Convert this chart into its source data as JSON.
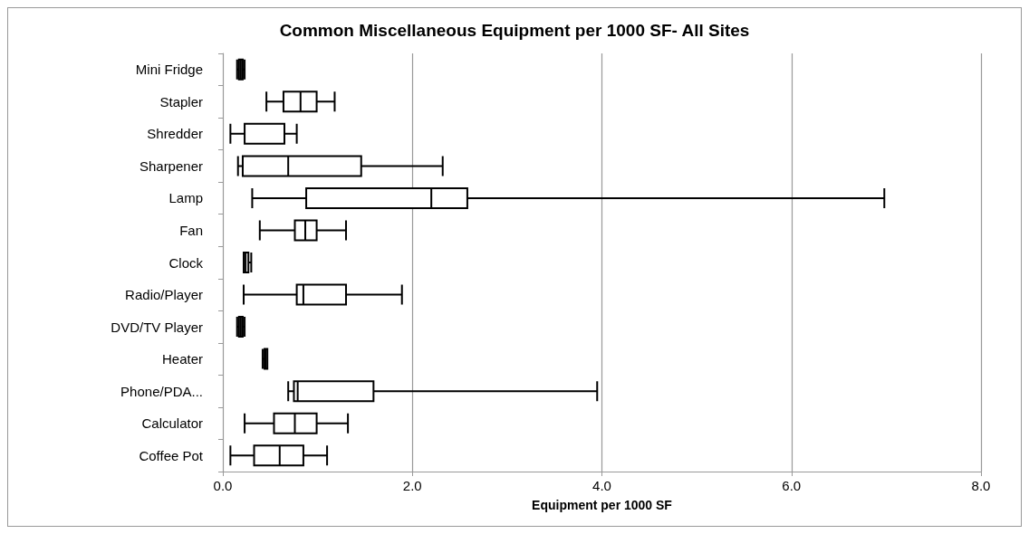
{
  "chart_data": {
    "type": "box",
    "title": "Common Miscellaneous Equipment per 1000 SF- All Sites",
    "xlabel": "Equipment per 1000 SF",
    "orientation": "horizontal",
    "categories": [
      "Mini Fridge",
      "Stapler",
      "Shredder",
      "Sharpener",
      "Lamp",
      "Fan",
      "Clock",
      "Radio/Player",
      "DVD/TV Player",
      "Heater",
      "Phone/PDA...",
      "Calculator",
      "Coffee Pot"
    ],
    "boxes": [
      {
        "low": 0.15,
        "q1": 0.17,
        "median": 0.19,
        "q3": 0.21,
        "high": 0.23
      },
      {
        "low": 0.46,
        "q1": 0.64,
        "median": 0.82,
        "q3": 0.99,
        "high": 1.18
      },
      {
        "low": 0.08,
        "q1": 0.23,
        "median": 0.23,
        "q3": 0.65,
        "high": 0.78
      },
      {
        "low": 0.16,
        "q1": 0.21,
        "median": 0.69,
        "q3": 1.46,
        "high": 2.32
      },
      {
        "low": 0.31,
        "q1": 0.88,
        "median": 2.2,
        "q3": 2.58,
        "high": 6.98
      },
      {
        "low": 0.39,
        "q1": 0.76,
        "median": 0.87,
        "q3": 0.99,
        "high": 1.3
      },
      {
        "low": 0.22,
        "q1": 0.22,
        "median": 0.24,
        "q3": 0.27,
        "high": 0.3
      },
      {
        "low": 0.22,
        "q1": 0.78,
        "median": 0.85,
        "q3": 1.3,
        "high": 1.89
      },
      {
        "low": 0.15,
        "q1": 0.17,
        "median": 0.19,
        "q3": 0.21,
        "high": 0.23
      },
      {
        "low": 0.42,
        "q1": 0.44,
        "median": 0.45,
        "q3": 0.47,
        "high": 0.47
      },
      {
        "low": 0.69,
        "q1": 0.75,
        "median": 0.79,
        "q3": 1.59,
        "high": 3.95
      },
      {
        "low": 0.23,
        "q1": 0.54,
        "median": 0.76,
        "q3": 0.99,
        "high": 1.32
      },
      {
        "low": 0.08,
        "q1": 0.33,
        "median": 0.6,
        "q3": 0.85,
        "high": 1.1
      }
    ],
    "color": "#000000",
    "xlim": [
      0,
      8
    ],
    "xticks": [
      {
        "value": 0,
        "label": "0.0"
      },
      {
        "value": 2,
        "label": "2.0"
      },
      {
        "value": 4,
        "label": "4.0"
      },
      {
        "value": 6,
        "label": "6.0"
      },
      {
        "value": 8,
        "label": "8.0"
      }
    ],
    "grid": "x"
  }
}
